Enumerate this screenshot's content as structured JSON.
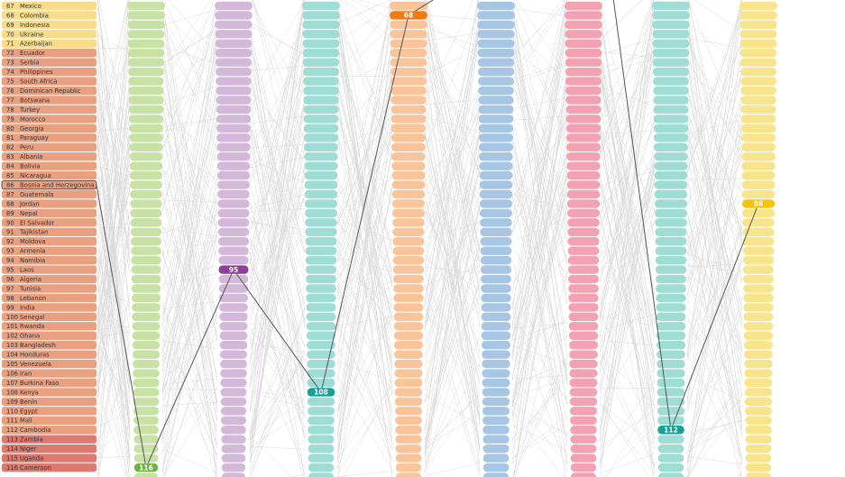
{
  "chart_data": {
    "type": "bump",
    "start_rank": 67,
    "countries": [
      "Mexico",
      "Colombia",
      "Indonesia",
      "Ukraine",
      "Azerbaijan",
      "Ecuador",
      "Serbia",
      "Philippines",
      "South Africa",
      "Dominican Republic",
      "Botswana",
      "Turkey",
      "Morocco",
      "Georgia",
      "Paraguay",
      "Peru",
      "Albania",
      "Bolivia",
      "Nicaragua",
      "Bosnia and Herzegovina",
      "Guatemala",
      "Jordan",
      "Nepal",
      "El Salvador",
      "Tajikistan",
      "Moldova",
      "Armenia",
      "Namibia",
      "Laos",
      "Algeria",
      "Tunisia",
      "Lebanon",
      "India",
      "Senegal",
      "Rwanda",
      "Ghana",
      "Bangladesh",
      "Honduras",
      "Venezuela",
      "Iran",
      "Burkina Faso",
      "Kenya",
      "Benin",
      "Egypt",
      "Mali",
      "Cambodia",
      "Zambia",
      "Niger",
      "Uganda",
      "Cameroon"
    ],
    "highlighted_country": "Bosnia and Herzegovina",
    "highlight_ranks": [
      116,
      95,
      108,
      68,
      null,
      null,
      112,
      88
    ],
    "colors": {
      "columns": [
        "#c8e2a6",
        "#d4b8da",
        "#9edcd4",
        "#f9c49a",
        "#a6c6e4",
        "#f2a2b2",
        "#9edcd4",
        "#f9e48e"
      ],
      "highlights": [
        "#6eb33f",
        "#8e3f98",
        "#16a09a",
        "#f07a14",
        null,
        null,
        "#16a09a",
        "#f5c40a"
      ],
      "labels_yellow": "#f8dc8a",
      "labels_orange": "#e8a080",
      "labels_red": "#dc7a70",
      "link": "#555555",
      "background_lines": "#d8d8d8"
    }
  }
}
